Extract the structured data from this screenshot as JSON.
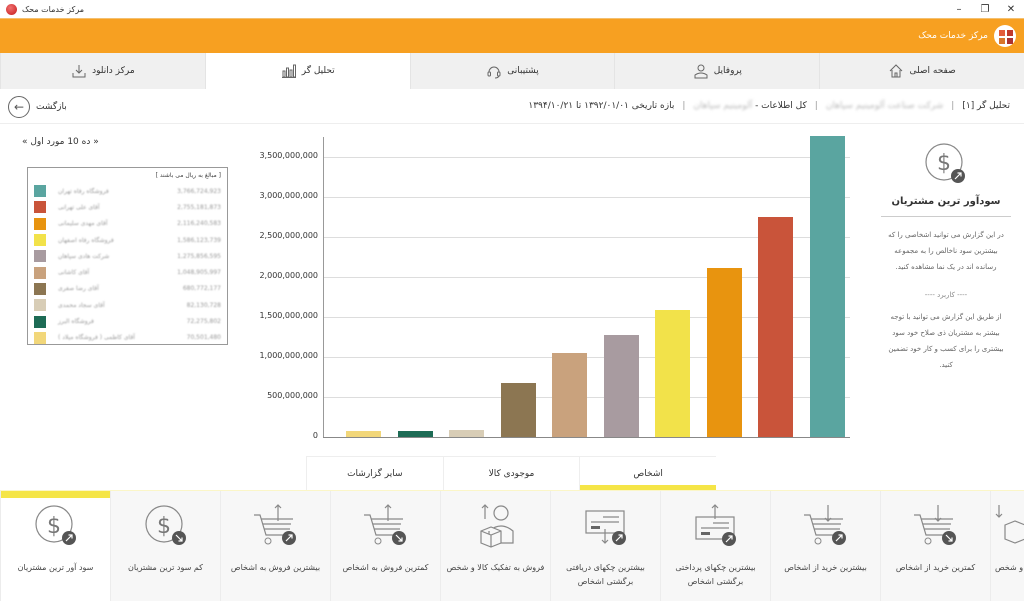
{
  "window": {
    "title": "مرکز خدمات محک",
    "controls": {
      "minimize": "–",
      "maximize": "❐",
      "close": "✕"
    }
  },
  "header": {
    "brand": "مرکز خدمات محک"
  },
  "tabs": [
    {
      "label": "صفحه اصلی",
      "icon": "home-icon"
    },
    {
      "label": "پروفایل",
      "icon": "user-icon"
    },
    {
      "label": "پشتیبانی",
      "icon": "headset-icon"
    },
    {
      "label": "تحلیل گر",
      "icon": "bar-chart-icon",
      "active": true
    },
    {
      "label": "مرکز دانلود",
      "icon": "download-icon"
    }
  ],
  "breadcrumb": {
    "analyzer": "تحلیل گر [۱]",
    "company": "شرکت صناعت آلومینیم سپاهان",
    "scope": "کل اطلاعات - آلومینیم سپاهان",
    "date_range_label": "بازه تاریخی",
    "date_from": "۱۳۹۲/۰۱/۰۱",
    "date_to_sep": "تا",
    "date_to": "۱۳۹۴/۱۰/۲۱",
    "separator": "|"
  },
  "back": {
    "label": "بازگشت",
    "icon": "arrow-left-icon"
  },
  "top10_label": "« ده 10 مورد اول »",
  "legend": {
    "unit_note": "[ مبالغ به ریال می باشند ]",
    "items": [
      {
        "name": "فروشگاه رفاه تهران",
        "value": "3,766,724,923",
        "color": "#5aa5a0"
      },
      {
        "name": "آقای علی تهرانی",
        "value": "2,755,181,873",
        "color": "#c9543a"
      },
      {
        "name": "آقای مهدی سلیمانی",
        "value": "2,116,240,583",
        "color": "#e8940f"
      },
      {
        "name": "فروشگاه رفاه اصفهان",
        "value": "1,586,123,739",
        "color": "#f2e24a"
      },
      {
        "name": "شرکت هادی سپاهان",
        "value": "1,275,856,595",
        "color": "#a89ba0"
      },
      {
        "name": "آقای کاشانی",
        "value": "1,048,905,997",
        "color": "#c9a27d"
      },
      {
        "name": "آقای رضا صفری",
        "value": "680,772,177",
        "color": "#8c7652"
      },
      {
        "name": "آقای سجاد محمدی",
        "value": "82,130,728",
        "color": "#d8cdb6"
      },
      {
        "name": "فروشگاه البرز",
        "value": "72,275,802",
        "color": "#1d6b55"
      },
      {
        "name": "آقای کاظمی ( فروشگاه میلاد )",
        "value": "70,501,480",
        "color": "#f2d77a"
      }
    ]
  },
  "chart_data": {
    "type": "bar",
    "title": "سودآور ترین مشتریان",
    "xlabel": "",
    "ylabel": "",
    "ylim": [
      0,
      3750000000
    ],
    "yticks": [
      "0",
      "500,000,000",
      "1,000,000,000",
      "1,500,000,000",
      "2,000,000,000",
      "2,500,000,000",
      "3,000,000,000",
      "3,500,000,000"
    ],
    "grid": true,
    "legend_position": "left",
    "categories": [
      "آقای کاظمی ( فروشگاه میلاد )",
      "فروشگاه البرز",
      "آقای سجاد محمدی",
      "آقای رضا صفری",
      "آقای کاشانی",
      "شرکت هادی سپاهان",
      "فروشگاه رفاه اصفهان",
      "آقای مهدی سلیمانی",
      "آقای علی تهرانی",
      "فروشگاه رفاه تهران"
    ],
    "values": [
      70501480,
      72275802,
      82130728,
      680772177,
      1048905997,
      1275856595,
      1586123739,
      2116240583,
      2755181873,
      3766724923
    ],
    "colors": [
      "#f2d77a",
      "#1d6b55",
      "#d8cdb6",
      "#8c7652",
      "#c9a27d",
      "#a89ba0",
      "#f2e24a",
      "#e8940f",
      "#c9543a",
      "#5aa5a0"
    ]
  },
  "info_panel": {
    "title": "سودآور ترین مشتریان",
    "description": "در این گزارش می توانید اشخاصی را که بیشترین سود ناخالص را به مجموعه رسانده اند در یک نما مشاهده کنید.",
    "usage_label": "---- کاربرد ----",
    "usage": "از طریق این گزارش می توانید با توجه بیشتر به مشتریان ذی صلاح خود سود بیشتری را برای کسب و کار خود تضمین کنید."
  },
  "report_tabs": [
    {
      "label": "اشخاص",
      "active": true
    },
    {
      "label": "موجودی کالا"
    },
    {
      "label": "سایر گزارشات"
    }
  ],
  "reports": [
    {
      "label": "سود آور ترین مشتریان",
      "icon": "dollar-up-icon",
      "active": true
    },
    {
      "label": "کم سود ترین مشتریان",
      "icon": "dollar-down-icon"
    },
    {
      "label": "بیشترین فروش به اشخاص",
      "icon": "cart-up-icon"
    },
    {
      "label": "کمترین فروش به اشخاص",
      "icon": "cart-down-icon"
    },
    {
      "label": "فروش به تفکیک کالا و شخص",
      "icon": "person-box-icon"
    },
    {
      "label": "بیشترین چکهای دریافتی برگشتی اشخاص",
      "icon": "cheque-in-icon"
    },
    {
      "label": "بیشترین چکهای پرداختی برگشتی اشخاص",
      "icon": "cheque-out-icon"
    },
    {
      "label": "بیشترین خرید از اشخاص",
      "icon": "cart-in-up-icon"
    },
    {
      "label": "کمترین خرید از اشخاص",
      "icon": "cart-in-down-icon"
    },
    {
      "label": "خرید به تفکیک کالا و شخص",
      "icon": "box-in-icon"
    }
  ]
}
